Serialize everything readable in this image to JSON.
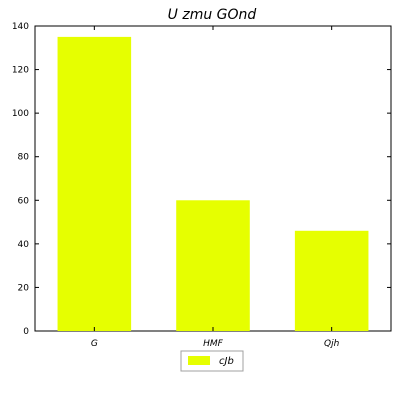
{
  "chart_data": {
    "type": "bar",
    "title": "U zmu  GOnd",
    "xlabel": "",
    "ylabel": "",
    "categories": [
      "G",
      "HMF",
      "Qjh"
    ],
    "series": [
      {
        "name": "cJb",
        "values": [
          135,
          60,
          46
        ],
        "color": "#e6ff00"
      }
    ],
    "ylim": [
      0,
      140
    ],
    "yticks": [
      0,
      20,
      40,
      60,
      80,
      100,
      120,
      140
    ],
    "grid": false,
    "legend_position": "bottom-center"
  }
}
